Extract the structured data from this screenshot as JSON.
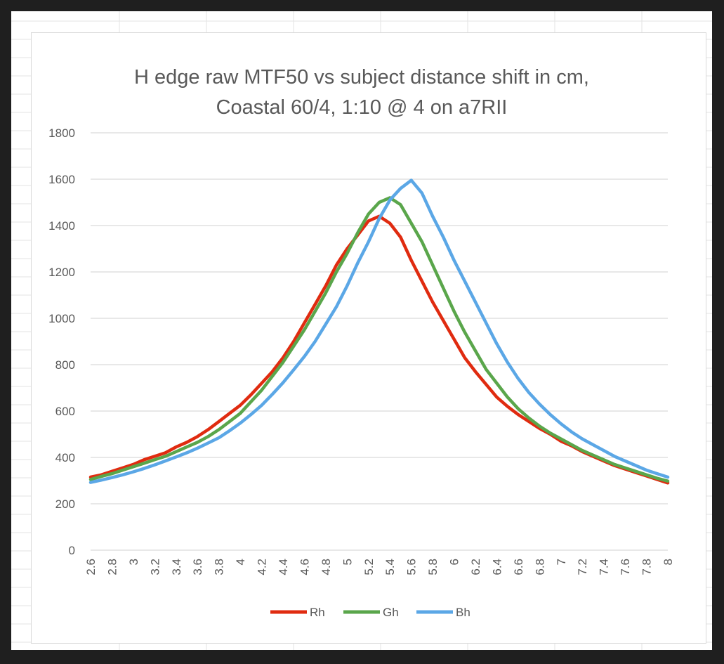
{
  "window": {
    "background": "#1f1f1f",
    "sheet_background": "#ffffff",
    "cell_grid_color": "#e3e3e3"
  },
  "chart_data": {
    "type": "line",
    "title": "H edge raw MTF50 vs subject distance shift in cm,",
    "subtitle": "Coastal 60/4, 1:10 @ 4 on a7RII",
    "xlabel": "",
    "ylabel": "",
    "ylim": [
      0,
      1800
    ],
    "yticks": [
      0,
      200,
      400,
      600,
      800,
      1000,
      1200,
      1400,
      1600,
      1800
    ],
    "xlim": [
      2.6,
      8.0
    ],
    "x_tick_labels": [
      "2.6",
      "2.8",
      "3",
      "3.2",
      "3.4",
      "3.6",
      "3.8",
      "4",
      "4.2",
      "4.4",
      "4.6",
      "4.8",
      "5",
      "5.2",
      "5.4",
      "5.6",
      "5.8",
      "6",
      "6.2",
      "6.4",
      "6.6",
      "6.8",
      "7",
      "7.2",
      "7.4",
      "7.6",
      "7.8",
      "8"
    ],
    "grid": "horizontal",
    "legend": "bottom",
    "series": [
      {
        "name": "Rh",
        "color": "#e02b10",
        "x": [
          2.6,
          2.7,
          2.8,
          2.9,
          3.0,
          3.1,
          3.2,
          3.3,
          3.4,
          3.5,
          3.6,
          3.7,
          3.8,
          3.9,
          4.0,
          4.1,
          4.2,
          4.3,
          4.4,
          4.5,
          4.6,
          4.7,
          4.8,
          4.9,
          5.0,
          5.1,
          5.2,
          5.3,
          5.4,
          5.5,
          5.6,
          5.7,
          5.8,
          5.9,
          6.0,
          6.1,
          6.2,
          6.3,
          6.4,
          6.5,
          6.6,
          6.7,
          6.8,
          6.9,
          7.0,
          7.1,
          7.2,
          7.3,
          7.4,
          7.5,
          7.6,
          7.7,
          7.8,
          7.9,
          8.0
        ],
        "values": [
          315,
          325,
          340,
          355,
          370,
          390,
          405,
          420,
          445,
          465,
          490,
          520,
          555,
          590,
          625,
          670,
          720,
          770,
          830,
          900,
          980,
          1060,
          1140,
          1230,
          1300,
          1360,
          1420,
          1440,
          1410,
          1350,
          1250,
          1160,
          1070,
          990,
          910,
          830,
          770,
          715,
          660,
          620,
          585,
          555,
          525,
          500,
          470,
          450,
          425,
          405,
          385,
          365,
          350,
          335,
          320,
          305,
          290
        ]
      },
      {
        "name": "Gh",
        "color": "#5aa64b",
        "x": [
          2.6,
          2.7,
          2.8,
          2.9,
          3.0,
          3.1,
          3.2,
          3.3,
          3.4,
          3.5,
          3.6,
          3.7,
          3.8,
          3.9,
          4.0,
          4.1,
          4.2,
          4.3,
          4.4,
          4.5,
          4.6,
          4.7,
          4.8,
          4.9,
          5.0,
          5.1,
          5.2,
          5.3,
          5.4,
          5.5,
          5.6,
          5.7,
          5.8,
          5.9,
          6.0,
          6.1,
          6.2,
          6.3,
          6.4,
          6.5,
          6.6,
          6.7,
          6.8,
          6.9,
          7.0,
          7.1,
          7.2,
          7.3,
          7.4,
          7.5,
          7.6,
          7.7,
          7.8,
          7.9,
          8.0
        ],
        "values": [
          305,
          318,
          330,
          345,
          360,
          375,
          390,
          405,
          425,
          445,
          465,
          490,
          520,
          555,
          590,
          640,
          690,
          750,
          810,
          880,
          950,
          1030,
          1110,
          1200,
          1280,
          1370,
          1450,
          1500,
          1520,
          1490,
          1410,
          1330,
          1230,
          1130,
          1030,
          940,
          860,
          780,
          720,
          660,
          610,
          570,
          535,
          505,
          480,
          455,
          430,
          410,
          390,
          370,
          355,
          340,
          325,
          310,
          298
        ]
      },
      {
        "name": "Bh",
        "color": "#5ba7e6",
        "x": [
          2.6,
          2.7,
          2.8,
          2.9,
          3.0,
          3.1,
          3.2,
          3.3,
          3.4,
          3.5,
          3.6,
          3.7,
          3.8,
          3.9,
          4.0,
          4.1,
          4.2,
          4.3,
          4.4,
          4.5,
          4.6,
          4.7,
          4.8,
          4.9,
          5.0,
          5.1,
          5.2,
          5.3,
          5.4,
          5.5,
          5.6,
          5.7,
          5.8,
          5.9,
          6.0,
          6.1,
          6.2,
          6.3,
          6.4,
          6.5,
          6.6,
          6.7,
          6.8,
          6.9,
          7.0,
          7.1,
          7.2,
          7.3,
          7.4,
          7.5,
          7.6,
          7.7,
          7.8,
          7.9,
          8.0
        ],
        "values": [
          292,
          302,
          313,
          325,
          338,
          352,
          368,
          385,
          402,
          420,
          440,
          462,
          485,
          515,
          548,
          585,
          625,
          672,
          722,
          778,
          835,
          900,
          975,
          1050,
          1140,
          1240,
          1330,
          1430,
          1510,
          1560,
          1595,
          1540,
          1440,
          1350,
          1250,
          1160,
          1070,
          980,
          890,
          810,
          740,
          680,
          630,
          585,
          545,
          510,
          480,
          455,
          430,
          405,
          385,
          365,
          345,
          330,
          315
        ]
      }
    ]
  }
}
